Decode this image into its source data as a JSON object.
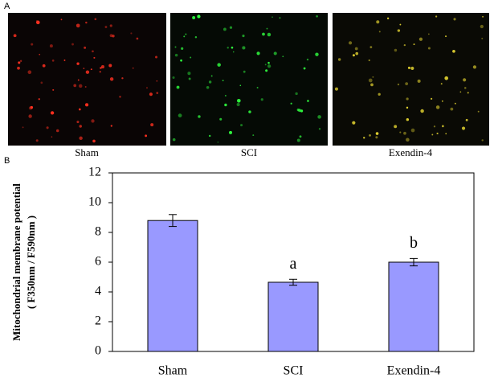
{
  "panel_a": {
    "label": "A",
    "captions": [
      "Sham",
      "SCI",
      "Exendin-4"
    ]
  },
  "chart_data": {
    "type": "bar",
    "panel_label": "B",
    "y_label": [
      "Mitochondrial membrane potential",
      "( F350nm / F590nm )"
    ],
    "categories": [
      "Sham",
      "SCI",
      "Exendin-4"
    ],
    "values": [
      8.8,
      4.65,
      6.0
    ],
    "errors": [
      0.4,
      0.2,
      0.25
    ],
    "bar_letters": [
      null,
      "a",
      "b"
    ],
    "color": "#9999ff",
    "ylim": [
      0,
      12
    ],
    "yticks": [
      0,
      2,
      4,
      6,
      8,
      10,
      12
    ]
  }
}
